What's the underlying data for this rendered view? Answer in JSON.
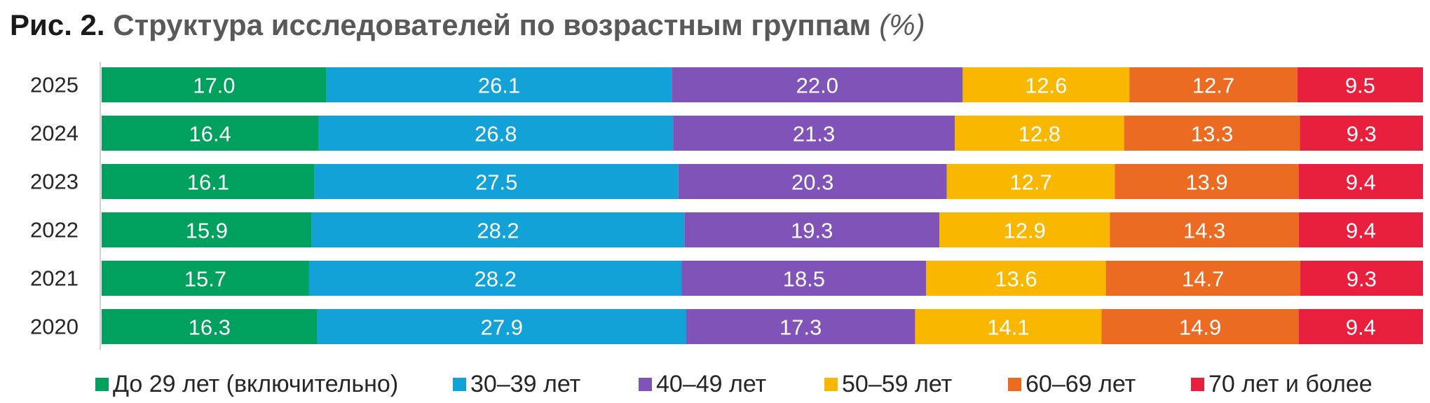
{
  "title": {
    "prefix": "Рис. 2.",
    "main": "Структура исследователей по возрастным группам",
    "unit": "(%)"
  },
  "chart_data": {
    "type": "bar",
    "orientation": "horizontal",
    "stacked": true,
    "categories": [
      "2025",
      "2024",
      "2023",
      "2022",
      "2021",
      "2020"
    ],
    "series": [
      {
        "name": "До 29 лет (включительно)",
        "color": "#00a05e",
        "values": [
          17.0,
          16.4,
          16.1,
          15.9,
          15.7,
          16.3
        ]
      },
      {
        "name": "30–39 лет",
        "color": "#12a2d8",
        "values": [
          26.1,
          26.8,
          27.5,
          28.2,
          28.2,
          27.9
        ]
      },
      {
        "name": "40–49 лет",
        "color": "#8053b9",
        "values": [
          22.0,
          21.3,
          20.3,
          19.3,
          18.5,
          17.3
        ]
      },
      {
        "name": "50–59 лет",
        "color": "#fab700",
        "values": [
          12.6,
          12.8,
          12.7,
          12.9,
          13.6,
          14.1
        ]
      },
      {
        "name": "60–69 лет",
        "color": "#ec6b23",
        "values": [
          12.7,
          13.3,
          13.9,
          14.3,
          14.7,
          14.9
        ]
      },
      {
        "name": "70 лет и более",
        "color": "#e8203e",
        "values": [
          9.5,
          9.3,
          9.4,
          9.4,
          9.3,
          9.4
        ]
      }
    ],
    "xlim": [
      0,
      100
    ],
    "grid": false,
    "legend": "bottom",
    "data_labels": true
  }
}
